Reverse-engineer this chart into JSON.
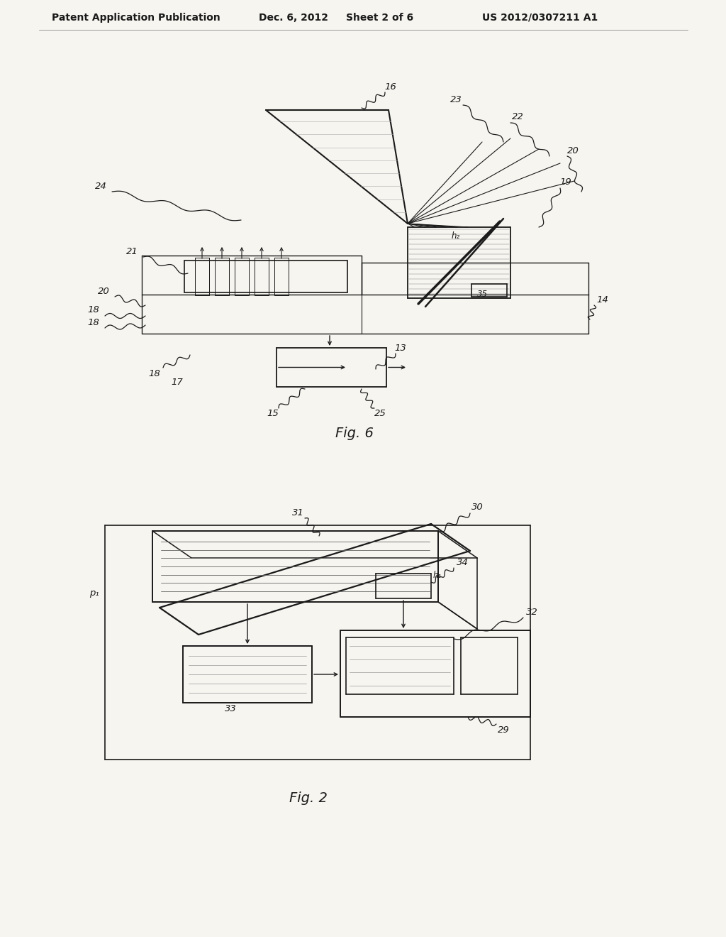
{
  "bg_color": "#f7f5f0",
  "line_color": "#1a1a1a",
  "header_text": "Patent Application Publication",
  "header_date": "Dec. 6, 2012",
  "header_sheet": "Sheet 2 of 6",
  "header_patent": "US 2012/0307211 A1",
  "fig6_label": "Fig. 6",
  "fig2_label": "Fig. 2",
  "page_bg": "#f7f5f0"
}
